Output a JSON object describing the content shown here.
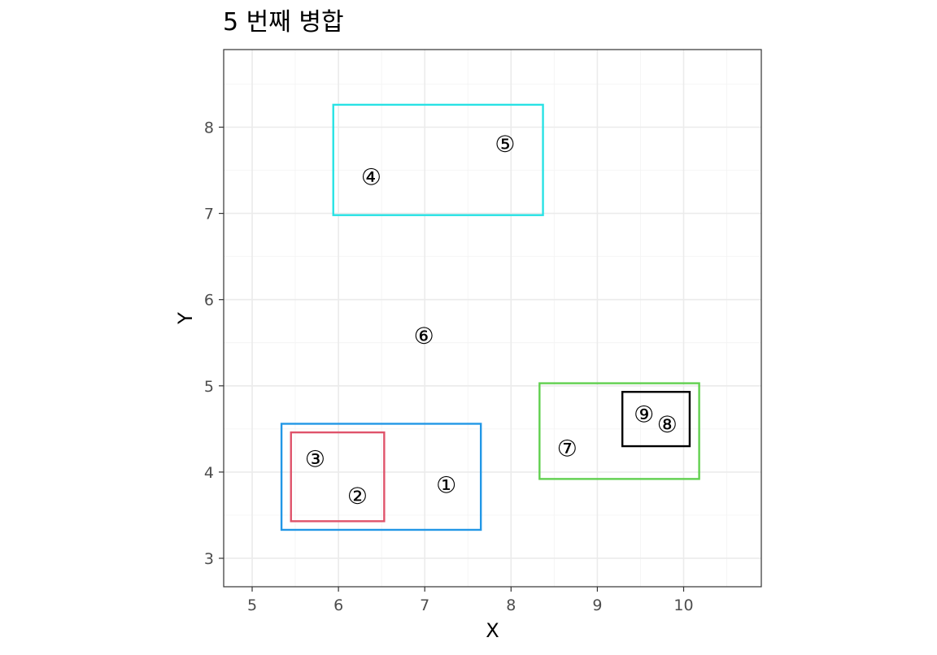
{
  "chart_data": {
    "type": "scatter",
    "title": "5 번째 병합",
    "xlabel": "X",
    "ylabel": "Y",
    "xlim": [
      4.67,
      10.9
    ],
    "ylim": [
      2.67,
      8.9
    ],
    "x_ticks": [
      5,
      6,
      7,
      8,
      9,
      10
    ],
    "y_ticks": [
      3,
      4,
      5,
      6,
      7,
      8
    ],
    "grid": true,
    "points": [
      {
        "label": "①",
        "x": 7.25,
        "y": 3.85
      },
      {
        "label": "②",
        "x": 6.22,
        "y": 3.72
      },
      {
        "label": "③",
        "x": 5.73,
        "y": 4.15
      },
      {
        "label": "④",
        "x": 6.38,
        "y": 7.42
      },
      {
        "label": "⑤",
        "x": 7.93,
        "y": 7.8
      },
      {
        "label": "⑥",
        "x": 6.99,
        "y": 5.58
      },
      {
        "label": "⑦",
        "x": 8.65,
        "y": 4.27
      },
      {
        "label": "⑧",
        "x": 9.81,
        "y": 4.55
      },
      {
        "label": "⑨",
        "x": 9.54,
        "y": 4.67
      }
    ],
    "boxes": [
      {
        "color": "#df536b",
        "x0": 5.45,
        "x1": 6.53,
        "y0": 3.43,
        "y1": 4.46
      },
      {
        "color": "#2297e6",
        "x0": 5.34,
        "x1": 7.65,
        "y0": 3.33,
        "y1": 4.56
      },
      {
        "color": "#28e2e5",
        "x0": 5.94,
        "x1": 8.37,
        "y0": 6.98,
        "y1": 8.26
      },
      {
        "color": "#61d04f",
        "x0": 8.33,
        "x1": 10.18,
        "y0": 3.92,
        "y1": 5.03
      },
      {
        "color": "#000000",
        "x0": 9.29,
        "x1": 10.07,
        "y0": 4.3,
        "y1": 4.93
      }
    ]
  }
}
